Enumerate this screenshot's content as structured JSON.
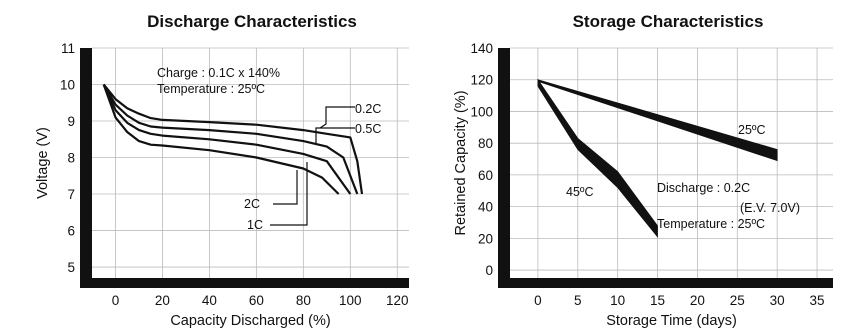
{
  "colors": {
    "ink": "#111111",
    "background": "#ffffff"
  },
  "chart_data": [
    {
      "type": "line",
      "title": "Discharge Characteristics",
      "xlabel": "Capacity Discharged (%)",
      "ylabel": "Voltage (V)",
      "xlim": [
        -10,
        125
      ],
      "ylim": [
        4.7,
        11
      ],
      "xticks": [
        0,
        20,
        40,
        60,
        80,
        100,
        120
      ],
      "yticks": [
        5,
        6,
        7,
        8,
        9,
        10,
        11
      ],
      "grid": true,
      "annotations": [
        "Charge : 0.1C x 140%",
        "Temperature : 25ºC"
      ],
      "series": [
        {
          "name": "0.2C",
          "x": [
            -5,
            0,
            5,
            10,
            15,
            20,
            40,
            60,
            80,
            90,
            100,
            103,
            105
          ],
          "y": [
            10,
            9.6,
            9.35,
            9.2,
            9.08,
            9.03,
            8.97,
            8.9,
            8.75,
            8.65,
            8.55,
            7.9,
            7.0
          ]
        },
        {
          "name": "0.5C",
          "x": [
            -5,
            0,
            5,
            10,
            15,
            20,
            40,
            60,
            80,
            90,
            97,
            103
          ],
          "y": [
            10,
            9.45,
            9.15,
            8.95,
            8.85,
            8.82,
            8.75,
            8.65,
            8.45,
            8.3,
            8.0,
            7.0
          ]
        },
        {
          "name": "1C",
          "x": [
            -5,
            0,
            5,
            10,
            15,
            20,
            40,
            60,
            80,
            90,
            100
          ],
          "y": [
            10,
            9.3,
            8.95,
            8.75,
            8.65,
            8.6,
            8.5,
            8.35,
            8.1,
            7.9,
            7.0
          ]
        },
        {
          "name": "2C",
          "x": [
            -5,
            0,
            5,
            10,
            15,
            20,
            40,
            60,
            80,
            88,
            95
          ],
          "y": [
            10,
            9.1,
            8.7,
            8.45,
            8.35,
            8.33,
            8.2,
            8.0,
            7.7,
            7.45,
            7.0
          ]
        }
      ]
    },
    {
      "type": "line",
      "title": "Storage Characteristics",
      "xlabel": "Storage Time (days)",
      "ylabel": "Retained Capacity (%)",
      "xlim": [
        -3.5,
        37
      ],
      "ylim": [
        -5,
        140
      ],
      "xticks": [
        0,
        5,
        10,
        15,
        20,
        25,
        30,
        35
      ],
      "yticks": [
        0,
        20,
        40,
        60,
        80,
        100,
        120,
        140
      ],
      "grid": true,
      "annotations": [
        "Discharge : 0.2C",
        "(E.V. 7.0V)",
        "Temperature : 25ºC"
      ],
      "series": [
        {
          "name": "25ºC",
          "x": [
            0,
            30
          ],
          "y_upper": [
            120,
            76
          ],
          "y_lower": [
            119,
            69
          ]
        },
        {
          "name": "45ºC",
          "x": [
            0,
            5,
            10,
            15
          ],
          "y_upper": [
            120,
            83,
            62,
            28
          ],
          "y_lower": [
            116,
            76,
            52,
            21
          ]
        }
      ]
    }
  ]
}
